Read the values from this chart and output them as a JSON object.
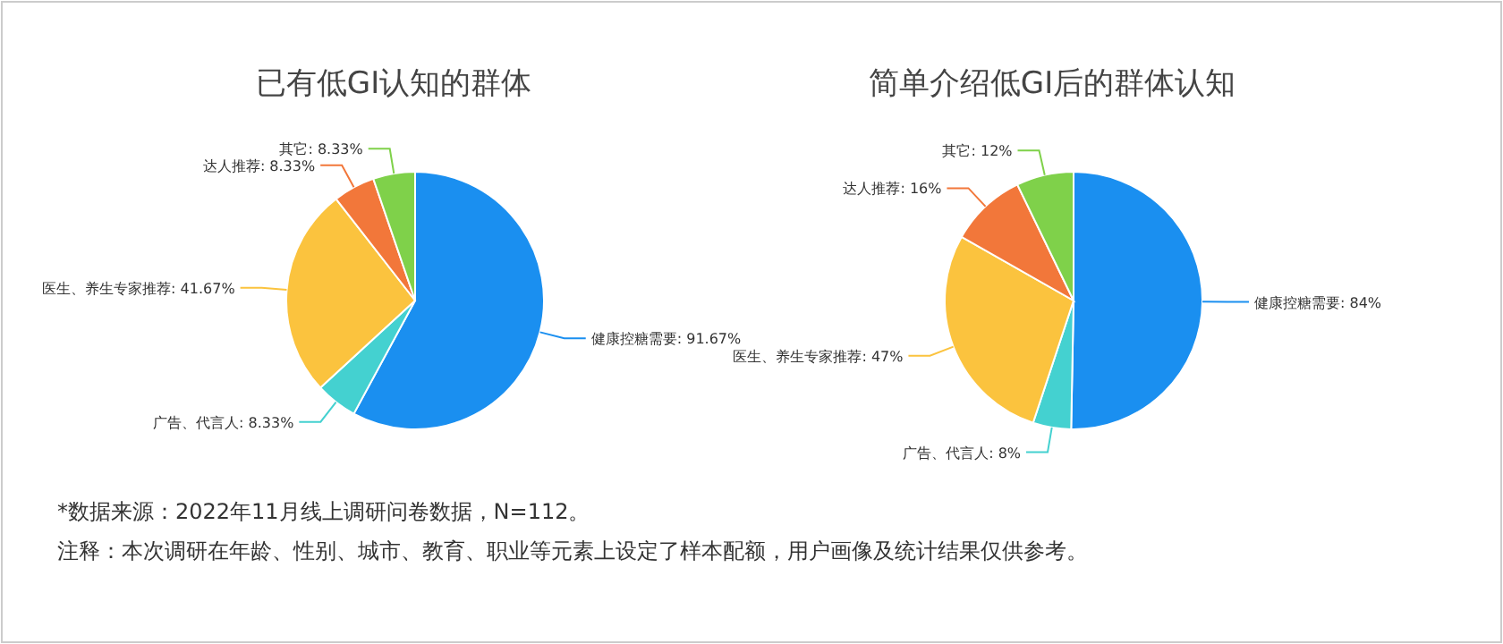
{
  "chart_data": [
    {
      "type": "pie",
      "title": "已有低GI认知的群体",
      "categories": [
        "健康控糖需要",
        "广告、代言人",
        "医生、养生专家推荐",
        "达人推荐",
        "其它"
      ],
      "values": [
        91.67,
        8.33,
        41.67,
        8.33,
        8.33
      ],
      "value_labels": [
        "91.67%",
        "8.33%",
        "41.67%",
        "8.33%",
        "8.33%"
      ],
      "colors": [
        "#1a8ff0",
        "#44d1d0",
        "#fbc33e",
        "#f2773a",
        "#7fd14a"
      ],
      "annotations": [
        "*数据来源：2022年11月线上调研问卷数据，N=112。",
        "注释：本次调研在年龄、性别、城市、教育、职业等元素上设定了样本配额，用户画像及统计结果仅供参考。"
      ]
    },
    {
      "type": "pie",
      "title": "简单介绍低GI后的群体认知",
      "categories": [
        "健康控糖需要",
        "广告、代言人",
        "医生、养生专家推荐",
        "达人推荐",
        "其它"
      ],
      "values": [
        84,
        8,
        47,
        16,
        12
      ],
      "value_labels": [
        "84%",
        "8%",
        "47%",
        "16%",
        "12%"
      ],
      "colors": [
        "#1a8ff0",
        "#44d1d0",
        "#fbc33e",
        "#f2773a",
        "#7fd14a"
      ]
    }
  ]
}
